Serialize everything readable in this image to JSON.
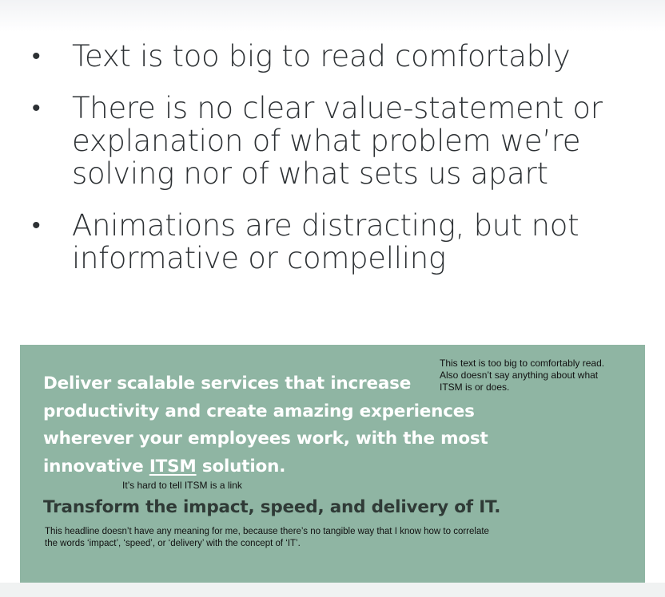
{
  "slide": {
    "bullets": [
      {
        "text": "Text is too big to read comfortably"
      },
      {
        "text": "There is no clear value-statement or explanation of what problem we’re solving nor of what sets us apart"
      },
      {
        "text": "Animations are distracting, but not informative or compelling"
      }
    ],
    "bullet_glyph": "•"
  },
  "screenshot": {
    "hero_text_before_link": "Deliver scalable services that increase productivity and create amazing experiences wherever your employees work, with the most innovative ",
    "hero_link_text": "ITSM",
    "hero_text_after_link": " solution.",
    "subheading": "Transform the impact, speed, and delivery of IT.",
    "panel_color": "#8fb5a3"
  },
  "annotations": {
    "top_note": "This text is too big to comfortably read. Also doesn’t say anything about what ITSM is or does.",
    "link_note": "It’s hard to tell ITSM is a link",
    "bottom_note": "This headline doesn’t have any meaning for me, because there’s no tangible way that I know how to correlate the words ‘impact’, ‘speed’, or ‘delivery’ with the concept of ‘IT’."
  }
}
